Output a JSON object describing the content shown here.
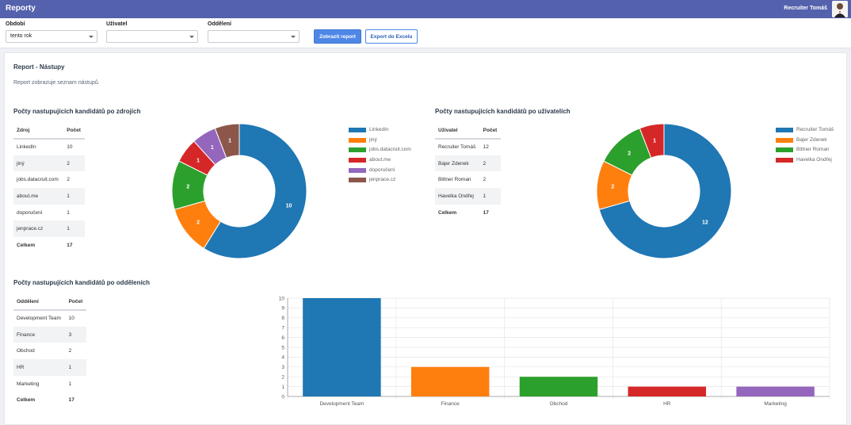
{
  "app": {
    "title": "Reporty",
    "user_name": "Recruiter Tomáš"
  },
  "filters": {
    "period_label": "Období",
    "period_value": "tento rok",
    "user_label": "Uživatel",
    "user_value": "",
    "department_label": "Oddělení",
    "department_value": "",
    "show_report_button": "Zobrazit report",
    "export_button": "Export do Excelu"
  },
  "report": {
    "title": "Report - Nástupy",
    "description": "Report zobrazuje seznam nástupů."
  },
  "sources": {
    "heading": "Počty nastupujících kandidátů po zdrojích",
    "col_name": "Zdroj",
    "col_count": "Počet",
    "rows": [
      {
        "name": "LinkedIn",
        "count": "10"
      },
      {
        "name": "jiný",
        "count": "2"
      },
      {
        "name": "jobs.datacruit.com",
        "count": "2"
      },
      {
        "name": "about.me",
        "count": "1"
      },
      {
        "name": "doporučení",
        "count": "1"
      },
      {
        "name": "jenprace.cz",
        "count": "1"
      }
    ],
    "total_label": "Celkem",
    "total_count": "17"
  },
  "users": {
    "heading": "Počty nastupujících kandidátů po uživatelích",
    "col_name": "Uživatel",
    "col_count": "Počet",
    "rows": [
      {
        "name": "Recruiter Tomáš",
        "count": "12"
      },
      {
        "name": "Bajer Zdenek",
        "count": "2"
      },
      {
        "name": "Bittner Roman",
        "count": "2"
      },
      {
        "name": "Havelka Ondřej",
        "count": "1"
      }
    ],
    "total_label": "Celkem",
    "total_count": "17"
  },
  "departments": {
    "heading": "Počty nastupujících kandidátů po odděleních",
    "col_name": "Oddělení",
    "col_count": "Počet",
    "rows": [
      {
        "name": "Development Team",
        "count": "10"
      },
      {
        "name": "Finance",
        "count": "3"
      },
      {
        "name": "Obchod",
        "count": "2"
      },
      {
        "name": "HR",
        "count": "1"
      },
      {
        "name": "Marketing",
        "count": "1"
      }
    ],
    "total_label": "Celkem",
    "total_count": "17"
  },
  "chart_data": [
    {
      "type": "pie",
      "variant": "donut",
      "labels": [
        "LinkedIn",
        "jiný",
        "jobs.datacruit.com",
        "about.me",
        "doporučení",
        "jenprace.cz"
      ],
      "values": [
        10,
        2,
        2,
        1,
        1,
        1
      ],
      "colors": [
        "#1f77b4",
        "#ff7f0e",
        "#2ca02c",
        "#d62728",
        "#9467bd",
        "#8c564b"
      ],
      "legend": "right"
    },
    {
      "type": "pie",
      "variant": "donut",
      "labels": [
        "Recruiter Tomáš",
        "Bajer Zdenek",
        "Bittner Roman",
        "Havelka Ondřej"
      ],
      "values": [
        12,
        2,
        2,
        1
      ],
      "colors": [
        "#1f77b4",
        "#ff7f0e",
        "#2ca02c",
        "#d62728"
      ],
      "legend": "right"
    },
    {
      "type": "bar",
      "categories": [
        "Development Team",
        "Finance",
        "Obchod",
        "HR",
        "Marketing"
      ],
      "values": [
        10,
        3,
        2,
        1,
        1
      ],
      "colors": [
        "#1f77b4",
        "#ff7f0e",
        "#2ca02c",
        "#d62728",
        "#9467bd"
      ],
      "ylim": [
        0,
        10
      ],
      "yticks": [
        0,
        1,
        2,
        3,
        4,
        5,
        6,
        7,
        8,
        9,
        10
      ],
      "grid": true
    }
  ]
}
